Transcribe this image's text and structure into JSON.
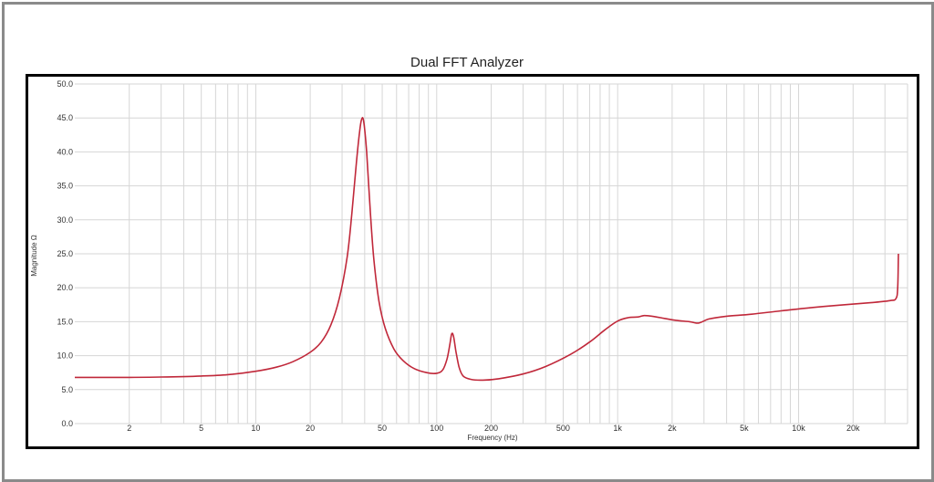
{
  "chart_data": {
    "type": "line",
    "title": "Dual FFT Analyzer",
    "xlabel": "Frequency (Hz)",
    "ylabel": "Magnitude  Ω",
    "x_scale": "log",
    "xlim": [
      1,
      40000
    ],
    "ylim": [
      0,
      50
    ],
    "grid": true,
    "line_color": "#c0283a",
    "y_ticks": [
      "0.0",
      "5.0",
      "10.0",
      "15.0",
      "20.0",
      "25.0",
      "30.0",
      "35.0",
      "40.0",
      "45.0",
      "50.0"
    ],
    "x_ticks": [
      {
        "value": 2,
        "label": "2"
      },
      {
        "value": 5,
        "label": "5"
      },
      {
        "value": 10,
        "label": "10"
      },
      {
        "value": 20,
        "label": "20"
      },
      {
        "value": 50,
        "label": "50"
      },
      {
        "value": 100,
        "label": "100"
      },
      {
        "value": 200,
        "label": "200"
      },
      {
        "value": 500,
        "label": "500"
      },
      {
        "value": 1000,
        "label": "1k"
      },
      {
        "value": 2000,
        "label": "2k"
      },
      {
        "value": 5000,
        "label": "5k"
      },
      {
        "value": 10000,
        "label": "10k"
      },
      {
        "value": 20000,
        "label": "20k"
      }
    ],
    "series": [
      {
        "points": [
          [
            1,
            6.8
          ],
          [
            2,
            6.8
          ],
          [
            3,
            6.85
          ],
          [
            5,
            7.0
          ],
          [
            7,
            7.2
          ],
          [
            10,
            7.7
          ],
          [
            13,
            8.3
          ],
          [
            16,
            9.1
          ],
          [
            20,
            10.5
          ],
          [
            23,
            12.0
          ],
          [
            26,
            14.5
          ],
          [
            29,
            18.5
          ],
          [
            32,
            24.5
          ],
          [
            34,
            31.0
          ],
          [
            36,
            38.5
          ],
          [
            37.5,
            43.0
          ],
          [
            38.5,
            44.8
          ],
          [
            39.5,
            44.5
          ],
          [
            41,
            40.0
          ],
          [
            43,
            31.0
          ],
          [
            45,
            24.0
          ],
          [
            48,
            18.0
          ],
          [
            52,
            14.0
          ],
          [
            58,
            11.0
          ],
          [
            65,
            9.3
          ],
          [
            75,
            8.1
          ],
          [
            88,
            7.5
          ],
          [
            100,
            7.4
          ],
          [
            108,
            7.9
          ],
          [
            114,
            9.5
          ],
          [
            118,
            11.5
          ],
          [
            121,
            13.2
          ],
          [
            124,
            12.8
          ],
          [
            128,
            10.5
          ],
          [
            133,
            8.3
          ],
          [
            140,
            7.0
          ],
          [
            155,
            6.5
          ],
          [
            180,
            6.4
          ],
          [
            220,
            6.6
          ],
          [
            300,
            7.3
          ],
          [
            400,
            8.4
          ],
          [
            550,
            10.2
          ],
          [
            700,
            12.0
          ],
          [
            850,
            13.8
          ],
          [
            1000,
            15.1
          ],
          [
            1150,
            15.6
          ],
          [
            1300,
            15.7
          ],
          [
            1400,
            15.9
          ],
          [
            1550,
            15.8
          ],
          [
            1800,
            15.5
          ],
          [
            2100,
            15.2
          ],
          [
            2500,
            15.0
          ],
          [
            2800,
            14.8
          ],
          [
            3200,
            15.4
          ],
          [
            4000,
            15.8
          ],
          [
            5500,
            16.1
          ],
          [
            8000,
            16.6
          ],
          [
            12000,
            17.1
          ],
          [
            18000,
            17.5
          ],
          [
            25000,
            17.8
          ],
          [
            32000,
            18.1
          ],
          [
            34500,
            18.4
          ],
          [
            35300,
            20.0
          ],
          [
            35600,
            25.0
          ]
        ]
      }
    ]
  }
}
